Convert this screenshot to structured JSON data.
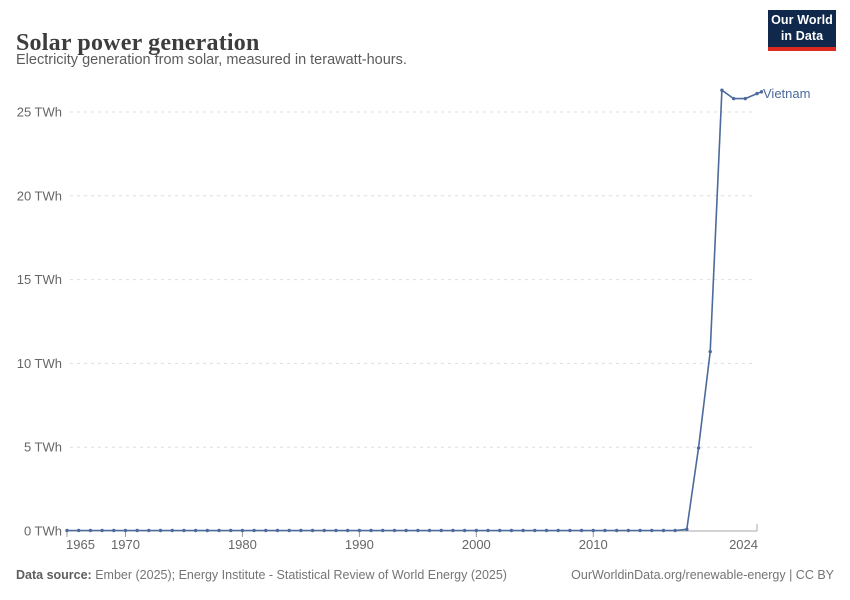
{
  "header": {
    "title": "Solar power generation",
    "subtitle": "Electricity generation from solar, measured in terawatt-hours.",
    "logo": {
      "line1": "Our World",
      "line2": "in Data"
    }
  },
  "footer": {
    "source_label": "Data source:",
    "source_text": " Ember (2025); Energy Institute - Statistical Review of World Energy (2025)",
    "link_text": "OurWorldinData.org/renewable-energy | CC BY"
  },
  "colors": {
    "series_line": "#4C6A9C",
    "series_label": "#4C6A9C",
    "gridline": "#dddddd",
    "axis_line": "#a7a7a7",
    "tick_mark": "#999999",
    "tick_label": "#666666",
    "logo_bg": "#10284c",
    "logo_stripe": "#dc2a20"
  },
  "chart_data": {
    "type": "line",
    "title": "Solar power generation",
    "subtitle": "Electricity generation from solar, measured in terawatt-hours.",
    "unit": "TWh",
    "x_range": [
      1965,
      2024
    ],
    "xticks": [
      1965,
      1970,
      1980,
      1990,
      2000,
      2010,
      2024
    ],
    "xtick_labels": [
      "1965",
      "1970",
      "1980",
      "1990",
      "2000",
      "2010",
      "2024"
    ],
    "yticks": [
      0,
      5,
      10,
      15,
      20,
      25
    ],
    "ytick_labels": [
      "0 TWh",
      "5 TWh",
      "10 TWh",
      "15 TWh",
      "20 TWh",
      "25 TWh"
    ],
    "ylim": [
      0,
      26.5
    ],
    "grid": "horizontal-dashed",
    "legend_position": "end-of-line-label",
    "series": [
      {
        "name": "Vietnam",
        "start_year": 1965,
        "values": [
          0,
          0,
          0,
          0,
          0,
          0,
          0,
          0,
          0,
          0,
          0,
          0,
          0,
          0,
          0,
          0,
          0,
          0,
          0,
          0,
          0,
          0,
          0,
          0,
          0,
          0,
          0,
          0,
          0,
          0,
          0,
          0,
          0,
          0,
          0,
          0,
          0,
          0,
          0,
          0,
          0,
          0,
          0,
          0,
          0,
          0,
          0,
          0,
          0,
          0,
          0,
          0,
          0,
          0.1,
          4.95,
          10.7,
          26.3,
          25.8,
          25.8,
          26.1
        ]
      }
    ]
  }
}
